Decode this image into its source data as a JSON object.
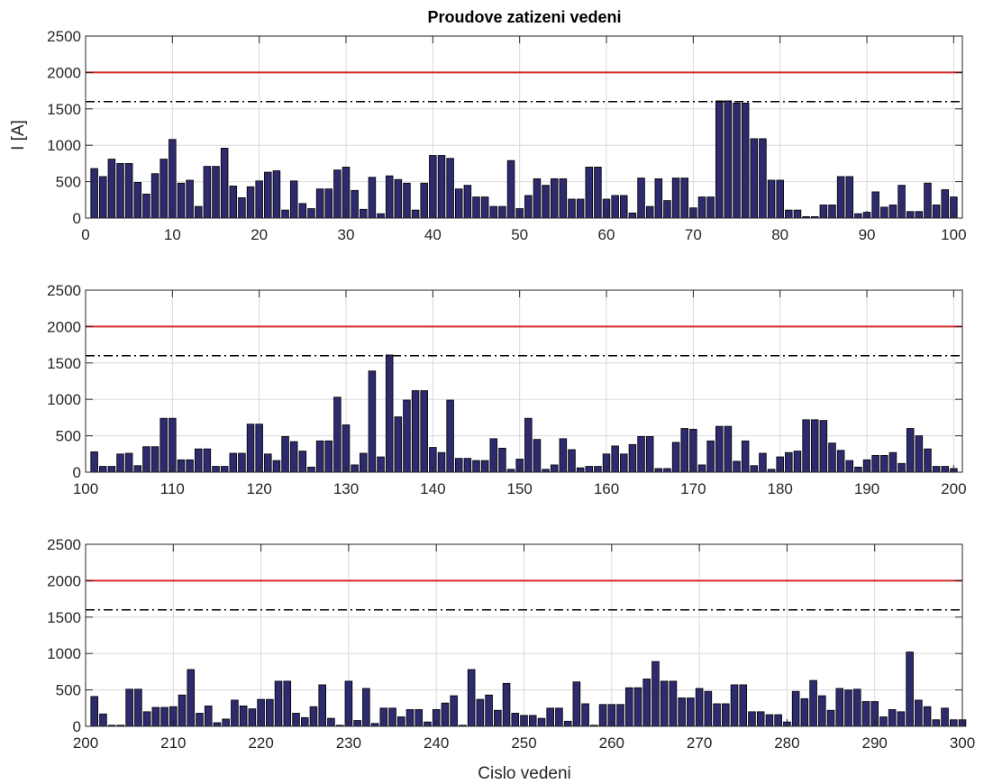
{
  "chart_data": {
    "type": "bar",
    "title": "Proudove zatizeni vedeni",
    "xlabel": "Cislo vedeni",
    "ylabel": "I [A]",
    "ylim": [
      0,
      2500
    ],
    "yticks": [
      0,
      500,
      1000,
      1500,
      2000,
      2500
    ],
    "grid": true,
    "bar_color": "#2e2a6e",
    "reference_lines": [
      {
        "value": 2000,
        "style": "solid",
        "color": "#d62728"
      },
      {
        "value": 1600,
        "style": "dash-dot",
        "color": "#000000"
      }
    ],
    "panels": [
      {
        "xlim": [
          0,
          101
        ],
        "xticks": [
          0,
          10,
          20,
          30,
          40,
          50,
          60,
          70,
          80,
          90,
          100
        ],
        "x_start": 1,
        "values": [
          680,
          570,
          810,
          750,
          750,
          490,
          330,
          610,
          810,
          1080,
          480,
          520,
          160,
          710,
          710,
          960,
          440,
          280,
          430,
          510,
          630,
          650,
          110,
          510,
          200,
          130,
          400,
          400,
          660,
          700,
          380,
          120,
          560,
          60,
          580,
          530,
          480,
          110,
          480,
          860,
          860,
          820,
          400,
          450,
          290,
          290,
          160,
          160,
          790,
          130,
          310,
          540,
          450,
          540,
          540,
          260,
          260,
          700,
          700,
          260,
          310,
          310,
          70,
          550,
          160,
          540,
          240,
          550,
          550,
          140,
          290,
          290,
          1610,
          1610,
          1580,
          1580,
          1090,
          1090,
          520,
          520,
          110,
          110,
          20,
          20,
          180,
          180,
          570,
          570,
          60,
          80,
          360,
          150,
          180,
          450,
          90,
          90,
          480,
          180,
          390,
          290
        ]
      },
      {
        "xlim": [
          100,
          201
        ],
        "xticks": [
          100,
          110,
          120,
          130,
          140,
          150,
          160,
          170,
          180,
          190,
          200
        ],
        "x_start": 101,
        "values": [
          280,
          80,
          80,
          250,
          260,
          90,
          350,
          350,
          740,
          740,
          170,
          170,
          320,
          320,
          80,
          80,
          260,
          260,
          660,
          660,
          250,
          160,
          490,
          420,
          290,
          70,
          430,
          430,
          1030,
          650,
          100,
          260,
          1390,
          210,
          1610,
          760,
          990,
          1120,
          1120,
          340,
          270,
          990,
          190,
          190,
          160,
          160,
          460,
          330,
          40,
          180,
          740,
          450,
          40,
          100,
          460,
          310,
          60,
          80,
          80,
          250,
          360,
          250,
          380,
          490,
          490,
          50,
          50,
          410,
          600,
          590,
          100,
          430,
          630,
          630,
          150,
          430,
          90,
          260,
          40,
          210,
          270,
          290,
          720,
          720,
          710,
          400,
          300,
          160,
          70,
          170,
          230,
          230,
          270,
          120,
          600,
          500,
          320,
          80,
          80,
          50
        ]
      },
      {
        "xlim": [
          200,
          300
        ],
        "xticks": [
          200,
          210,
          220,
          230,
          240,
          250,
          260,
          270,
          280,
          290,
          300
        ],
        "x_start": 201,
        "values": [
          410,
          170,
          15,
          15,
          510,
          510,
          200,
          260,
          260,
          270,
          430,
          780,
          180,
          280,
          50,
          100,
          360,
          280,
          240,
          370,
          370,
          620,
          620,
          180,
          120,
          270,
          570,
          110,
          15,
          620,
          80,
          520,
          40,
          250,
          250,
          130,
          230,
          230,
          60,
          230,
          320,
          420,
          15,
          780,
          370,
          430,
          220,
          590,
          180,
          150,
          150,
          110,
          250,
          250,
          70,
          610,
          310,
          15,
          300,
          300,
          300,
          530,
          530,
          650,
          890,
          620,
          620,
          390,
          390,
          520,
          480,
          310,
          310,
          570,
          570,
          200,
          200,
          160,
          160,
          60,
          480,
          380,
          630,
          420,
          220,
          520,
          500,
          510,
          340,
          340,
          130,
          230,
          200,
          1020,
          360,
          270,
          90,
          250,
          90,
          90
        ]
      }
    ]
  }
}
